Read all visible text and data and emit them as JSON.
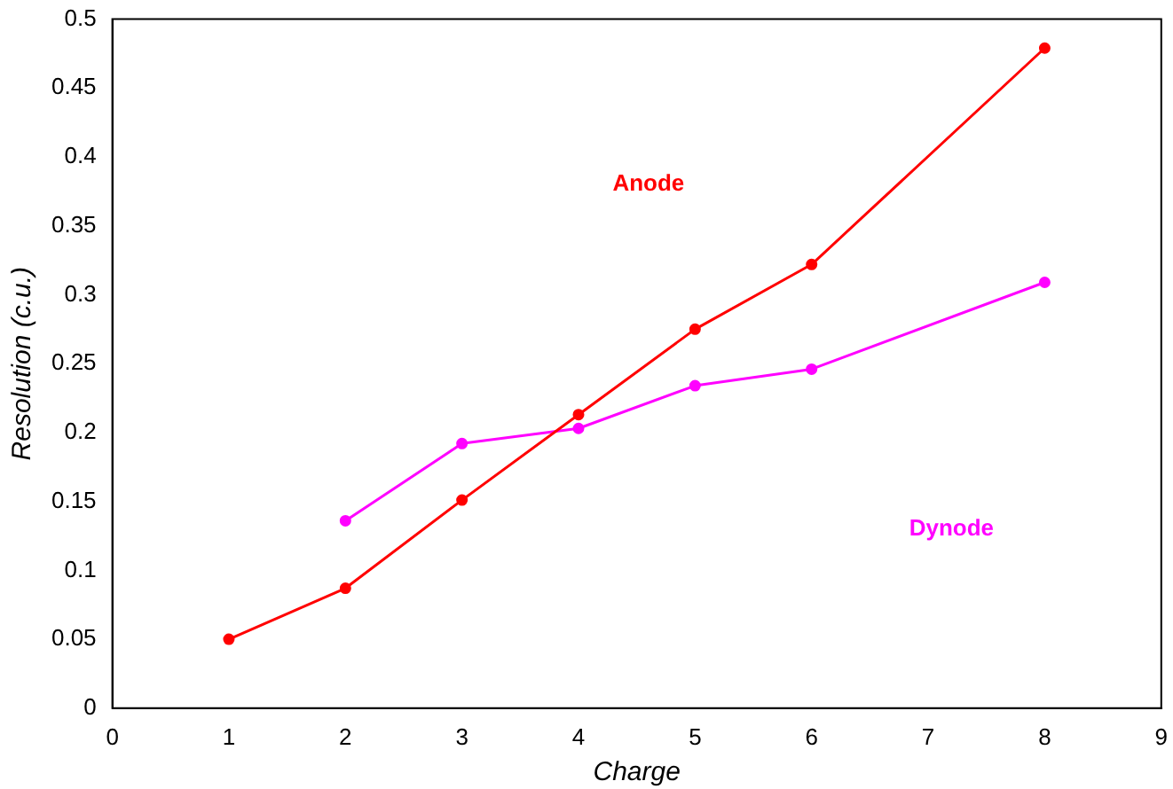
{
  "chart_data": {
    "type": "line",
    "xlabel": "Charge",
    "ylabel": "Resolution (c.u.)",
    "xlim": [
      0,
      9
    ],
    "xticks": [
      0,
      1,
      2,
      3,
      4,
      5,
      6,
      7,
      8,
      9
    ],
    "ylim": [
      0,
      0.5
    ],
    "yticks": [
      0,
      0.05,
      0.1,
      0.15,
      0.2,
      0.25,
      0.3,
      0.35,
      0.4,
      0.45,
      0.5
    ],
    "grid": false,
    "legend": false,
    "marker": "circle",
    "line_style": "solid",
    "series": [
      {
        "name": "Anode",
        "color": "#ff0000",
        "x": [
          1,
          2,
          3,
          4,
          5,
          6,
          8
        ],
        "values": [
          0.05,
          0.087,
          0.151,
          0.213,
          0.275,
          0.322,
          0.479
        ]
      },
      {
        "name": "Dynode",
        "color": "#ff00ff",
        "x": [
          2,
          3,
          4,
          5,
          6,
          8
        ],
        "values": [
          0.136,
          0.192,
          0.203,
          0.234,
          0.246,
          0.309
        ]
      }
    ]
  }
}
